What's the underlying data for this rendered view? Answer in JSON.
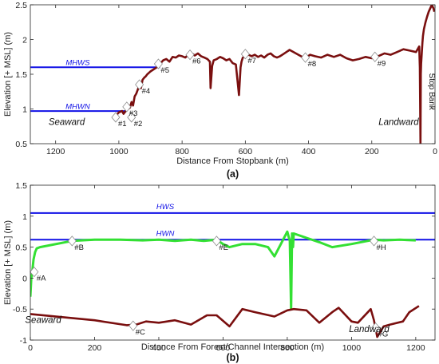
{
  "colors": {
    "profile": "#7a0f0f",
    "reference": "#1010e6",
    "channel": "#33e033",
    "marker_fill": "#ffffff",
    "marker_stroke": "#8c8c8c",
    "axis": "#262626"
  },
  "chart_data": [
    {
      "id": "a",
      "type": "line",
      "panel_label": "(a)",
      "xlabel": "Distance From Stopbank (m)",
      "ylabel": "Elevation [+ MSL] (m)",
      "xlim": [
        1280,
        0
      ],
      "ylim": [
        0.5,
        2.5
      ],
      "x_reversed": true,
      "xticks": [
        1200,
        1000,
        800,
        600,
        400,
        200,
        0
      ],
      "yticks": [
        0.5,
        1,
        1.5,
        2,
        2.5
      ],
      "ytick_labels": [
        "0.5",
        "1",
        "1.5",
        "2",
        "2.5"
      ],
      "grid": false,
      "annotations": [
        {
          "text": "Seaward",
          "x": 1165,
          "y": 0.77
        },
        {
          "text": "Landward",
          "x": 115,
          "y": 0.77
        },
        {
          "text": "Stop Bank",
          "x": 18,
          "y": 1.25,
          "rotated": true
        }
      ],
      "series": [
        {
          "role": "reference",
          "label": "MHWS",
          "x": [
            1280,
            870
          ],
          "y": [
            1.6,
            1.6
          ],
          "label_at": [
            1130,
            1.62
          ]
        },
        {
          "role": "reference",
          "label": "MHWN",
          "x": [
            1280,
            975
          ],
          "y": [
            0.97,
            0.97
          ],
          "label_at": [
            1130,
            0.99
          ]
        },
        {
          "role": "profile",
          "x": [
            1010,
            1000,
            990,
            985,
            975,
            965,
            960,
            955,
            950,
            945,
            940,
            935,
            930,
            925,
            920,
            915,
            910,
            905,
            900,
            890,
            880,
            870,
            860,
            850,
            840,
            830,
            820,
            810,
            800,
            790,
            780,
            770,
            760,
            750,
            740,
            730,
            720,
            712,
            710,
            705,
            700,
            690,
            680,
            670,
            660,
            650,
            640,
            630,
            620,
            615,
            612,
            608,
            600,
            590,
            580,
            570,
            560,
            550,
            540,
            530,
            520,
            510,
            500,
            490,
            480,
            470,
            460,
            440,
            420,
            410,
            405,
            395,
            380,
            360,
            340,
            320,
            300,
            280,
            260,
            240,
            220,
            200,
            180,
            160,
            140,
            120,
            100,
            80,
            60,
            50,
            48,
            46,
            45,
            44,
            42,
            40,
            38,
            35,
            30,
            25,
            20,
            15,
            10,
            5,
            2
          ],
          "y": [
            0.9,
            0.95,
            0.97,
            0.93,
            0.99,
            1.02,
            1.1,
            1.05,
            1.18,
            1.22,
            1.28,
            1.35,
            1.3,
            1.42,
            1.45,
            1.47,
            1.5,
            1.52,
            1.54,
            1.57,
            1.6,
            1.65,
            1.7,
            1.72,
            1.68,
            1.75,
            1.74,
            1.77,
            1.76,
            1.74,
            1.78,
            1.8,
            1.77,
            1.8,
            1.76,
            1.74,
            1.72,
            1.68,
            1.3,
            1.62,
            1.7,
            1.72,
            1.75,
            1.73,
            1.7,
            1.72,
            1.66,
            1.64,
            1.2,
            1.6,
            1.68,
            1.74,
            1.76,
            1.78,
            1.76,
            1.78,
            1.75,
            1.77,
            1.74,
            1.78,
            1.8,
            1.76,
            1.74,
            1.76,
            1.79,
            1.82,
            1.85,
            1.8,
            1.75,
            1.72,
            1.75,
            1.78,
            1.76,
            1.74,
            1.78,
            1.75,
            1.78,
            1.73,
            1.7,
            1.72,
            1.75,
            1.73,
            1.76,
            1.8,
            1.78,
            1.82,
            1.86,
            1.84,
            1.82,
            1.9,
            1.6,
            0.5,
            1.5,
            1.65,
            1.8,
            1.95,
            2.05,
            2.15,
            2.25,
            2.33,
            2.4,
            2.45,
            2.5,
            2.45,
            2.4
          ]
        },
        {
          "role": "markers",
          "labels": [
            "#1",
            "#2",
            "#3",
            "#4",
            "#5",
            "#6",
            "#7",
            "#8",
            "#9"
          ],
          "x": [
            1010,
            960,
            975,
            935,
            875,
            775,
            600,
            410,
            190
          ],
          "y": [
            0.88,
            0.88,
            1.03,
            1.35,
            1.65,
            1.78,
            1.79,
            1.74,
            1.75
          ]
        }
      ]
    },
    {
      "id": "b",
      "type": "line",
      "panel_label": "(b)",
      "xlabel": "Distance From Forest/Channel Intersection (m)",
      "ylabel": "Elevation [+ MSL] (m)",
      "xlim": [
        0,
        1260
      ],
      "ylim": [
        -1,
        1.5
      ],
      "xticks": [
        0,
        200,
        400,
        600,
        800,
        1000,
        1200
      ],
      "yticks": [
        -1,
        -0.5,
        0,
        0.5,
        1,
        1.5
      ],
      "ytick_labels": [
        "-1",
        "-0.5",
        "0",
        "0.5",
        "1",
        "1.5"
      ],
      "grid": false,
      "annotations": [
        {
          "text": "Seaward",
          "x": 40,
          "y": -0.72
        },
        {
          "text": "Landward",
          "x": 1055,
          "y": -0.87
        }
      ],
      "series": [
        {
          "role": "reference",
          "label": "HWS",
          "x": [
            0,
            1260
          ],
          "y": [
            1.05,
            1.05
          ],
          "label_at": [
            420,
            1.1
          ]
        },
        {
          "role": "reference",
          "label": "HWN",
          "x": [
            0,
            1260
          ],
          "y": [
            0.62,
            0.62
          ],
          "label_at": [
            420,
            0.67
          ]
        },
        {
          "role": "channel",
          "x": [
            0,
            3,
            6,
            10,
            15,
            20,
            30,
            130,
            200,
            280,
            350,
            400,
            450,
            500,
            540,
            580,
            600,
            620,
            660,
            700,
            740,
            760,
            780,
            800,
            808,
            812,
            815,
            818,
            820,
            860,
            900,
            940,
            1000,
            1050,
            1070,
            1100,
            1150,
            1200
          ],
          "y": [
            -0.3,
            0.0,
            0.1,
            0.3,
            0.42,
            0.48,
            0.5,
            0.6,
            0.62,
            0.62,
            0.61,
            0.62,
            0.6,
            0.62,
            0.6,
            0.62,
            0.55,
            0.5,
            0.55,
            0.55,
            0.5,
            0.35,
            0.55,
            0.75,
            0.6,
            -0.5,
            0.72,
            0.5,
            0.72,
            0.65,
            0.58,
            0.5,
            0.55,
            0.6,
            0.62,
            0.61,
            0.62,
            0.61
          ]
        },
        {
          "role": "profile",
          "x": [
            0,
            100,
            200,
            300,
            330,
            360,
            400,
            450,
            500,
            550,
            580,
            620,
            660,
            700,
            760,
            800,
            820,
            860,
            900,
            940,
            960,
            1000,
            1020,
            1060,
            1070,
            1080,
            1100,
            1120,
            1160,
            1180,
            1210
          ],
          "y": [
            -0.58,
            -0.63,
            -0.68,
            -0.76,
            -0.75,
            -0.7,
            -0.72,
            -0.68,
            -0.75,
            -0.6,
            -0.6,
            -0.78,
            -0.5,
            -0.55,
            -0.62,
            -0.52,
            -0.5,
            -0.52,
            -0.72,
            -0.55,
            -0.48,
            -0.7,
            -0.72,
            -0.5,
            -0.68,
            -0.95,
            -0.78,
            -0.75,
            -0.7,
            -0.55,
            -0.45
          ]
        },
        {
          "role": "markers",
          "labels": [
            "#A",
            "#B",
            "#C",
            "#E",
            "#H",
            "#G"
          ],
          "x": [
            12,
            130,
            320,
            580,
            1070,
            1075
          ],
          "y": [
            0.1,
            0.6,
            -0.77,
            0.6,
            0.6,
            -0.8
          ]
        }
      ]
    }
  ]
}
